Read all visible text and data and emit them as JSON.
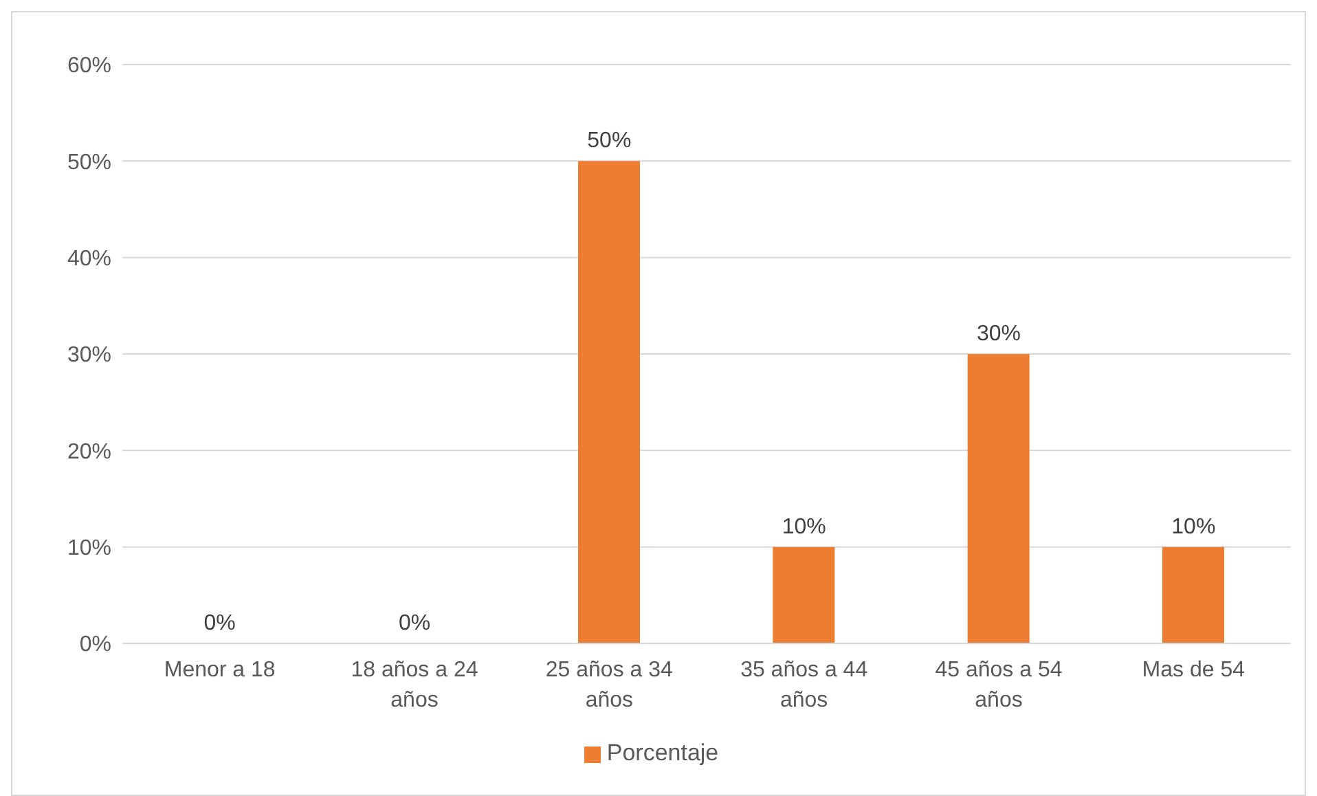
{
  "chart_data": {
    "type": "bar",
    "categories": [
      "Menor a 18",
      "18 años a 24 años",
      "25 años a 34 años",
      "35 años a 44 años",
      "45 años a 54 años",
      "Mas de 54"
    ],
    "series": [
      {
        "name": "Porcentaje",
        "color": "#ed7d31",
        "values": [
          0,
          0,
          50,
          10,
          30,
          10
        ],
        "value_labels": [
          "0%",
          "0%",
          "50%",
          "10%",
          "30%",
          "10%"
        ]
      }
    ],
    "ylim": [
      0,
      60
    ],
    "yticks": [
      {
        "value": 0,
        "label": "0%"
      },
      {
        "value": 10,
        "label": "10%"
      },
      {
        "value": 20,
        "label": "20%"
      },
      {
        "value": 30,
        "label": "30%"
      },
      {
        "value": 40,
        "label": "40%"
      },
      {
        "value": 50,
        "label": "50%"
      },
      {
        "value": 60,
        "label": "60%"
      }
    ],
    "grid": "y",
    "legend": "bottom"
  }
}
